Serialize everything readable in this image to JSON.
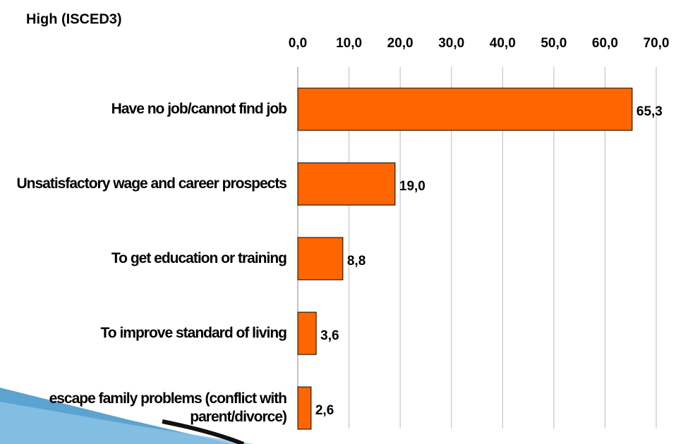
{
  "chart_data": {
    "type": "hbar",
    "title": "High (ISCED3)",
    "categories": [
      "Have no job/cannot find job",
      "Unsatisfactory wage and career prospects",
      "To get education or training",
      "To improve standard of living",
      "escape family problems (conflict with parent/divorce)"
    ],
    "values": [
      65.3,
      19.0,
      8.8,
      3.6,
      2.6
    ],
    "value_labels": [
      "65,3",
      "19,0",
      "8,8",
      "3,6",
      "2,6"
    ],
    "color": "#ff6600",
    "xlim": [
      0,
      70
    ],
    "xticks": [
      {
        "value": 0,
        "label": "0,0"
      },
      {
        "value": 10,
        "label": "10,0"
      },
      {
        "value": 20,
        "label": "20,0"
      },
      {
        "value": 30,
        "label": "30,0"
      },
      {
        "value": 40,
        "label": "40,0"
      },
      {
        "value": 50,
        "label": "50,0"
      },
      {
        "value": 60,
        "label": "60,0"
      },
      {
        "value": 70,
        "label": "70,0"
      }
    ],
    "grid": true
  }
}
